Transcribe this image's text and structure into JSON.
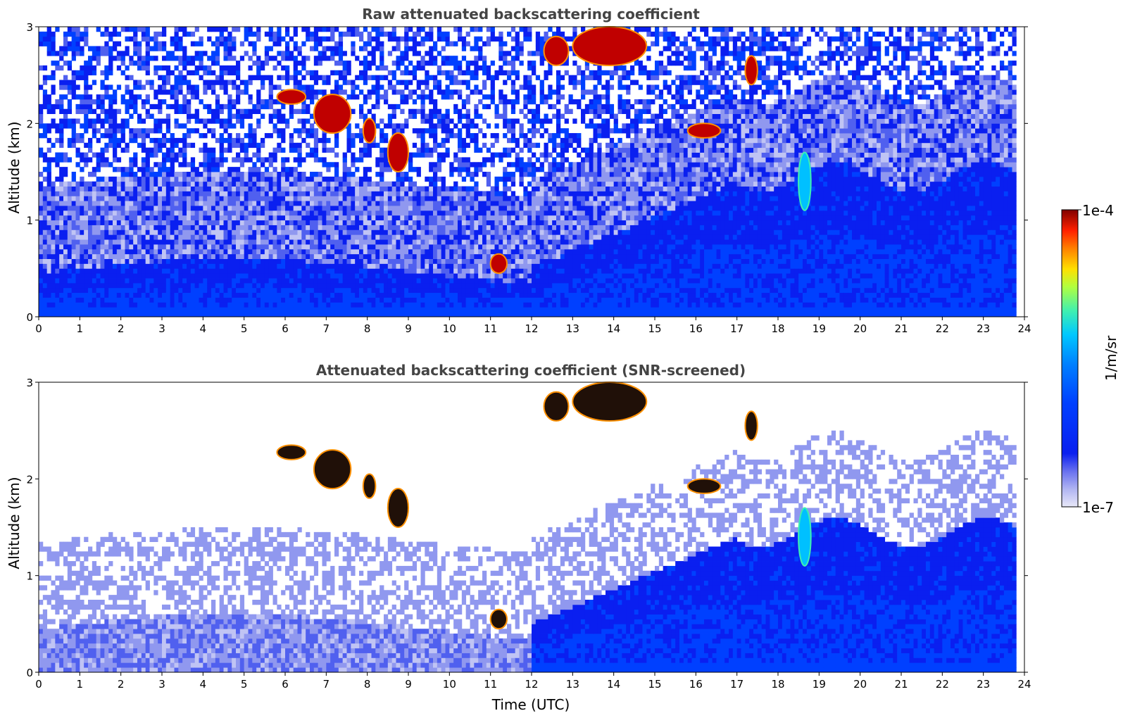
{
  "chart_data": [
    {
      "type": "heatmap",
      "title": "Raw attenuated backscattering coefficient",
      "xlabel": "",
      "ylabel": "Altitude (km)",
      "xlim": [
        0,
        24
      ],
      "ylim": [
        0,
        3
      ],
      "x_ticks": [
        "0",
        "1",
        "2",
        "3",
        "4",
        "5",
        "6",
        "7",
        "8",
        "9",
        "10",
        "11",
        "12",
        "13",
        "14",
        "15",
        "16",
        "17",
        "18",
        "19",
        "20",
        "21",
        "22",
        "23",
        "24"
      ],
      "y_ticks": [
        "0",
        "1",
        "2",
        "3"
      ],
      "features": [
        {
          "kind": "cloud",
          "x": [
            5.8,
            6.5
          ],
          "y": [
            2.2,
            2.35
          ],
          "level": "high"
        },
        {
          "kind": "cloud",
          "x": [
            6.7,
            7.6
          ],
          "y": [
            1.9,
            2.3
          ],
          "level": "high"
        },
        {
          "kind": "cloud",
          "x": [
            7.9,
            8.2
          ],
          "y": [
            1.8,
            2.05
          ],
          "level": "high"
        },
        {
          "kind": "cloud",
          "x": [
            8.5,
            9.0
          ],
          "y": [
            1.5,
            1.9
          ],
          "level": "high"
        },
        {
          "kind": "cloud",
          "x": [
            11.0,
            11.4
          ],
          "y": [
            0.45,
            0.65
          ],
          "level": "high"
        },
        {
          "kind": "cloud",
          "x": [
            12.3,
            12.9
          ],
          "y": [
            2.6,
            2.9
          ],
          "level": "high"
        },
        {
          "kind": "cloud",
          "x": [
            13.0,
            14.8
          ],
          "y": [
            2.6,
            3.0
          ],
          "level": "high"
        },
        {
          "kind": "cloud",
          "x": [
            15.8,
            16.6
          ],
          "y": [
            1.85,
            2.0
          ],
          "level": "high"
        },
        {
          "kind": "cloud",
          "x": [
            17.2,
            17.5
          ],
          "y": [
            2.4,
            2.7
          ],
          "level": "high"
        },
        {
          "kind": "cloud",
          "x": [
            18.5,
            18.8
          ],
          "y": [
            1.1,
            1.7
          ],
          "level": "mid"
        }
      ]
    },
    {
      "type": "heatmap",
      "title": "Attenuated backscattering coefficient (SNR-screened)",
      "xlabel": "Time (UTC)",
      "ylabel": "Altitude (km)",
      "xlim": [
        0,
        24
      ],
      "ylim": [
        0,
        3
      ],
      "x_ticks": [
        "0",
        "1",
        "2",
        "3",
        "4",
        "5",
        "6",
        "7",
        "8",
        "9",
        "10",
        "11",
        "12",
        "13",
        "14",
        "15",
        "16",
        "17",
        "18",
        "19",
        "20",
        "21",
        "22",
        "23",
        "24"
      ],
      "y_ticks": [
        "0",
        "1",
        "2",
        "3"
      ],
      "features": [
        {
          "kind": "cloud",
          "x": [
            5.8,
            6.5
          ],
          "y": [
            2.2,
            2.35
          ],
          "level": "high"
        },
        {
          "kind": "cloud",
          "x": [
            6.7,
            7.6
          ],
          "y": [
            1.9,
            2.3
          ],
          "level": "high"
        },
        {
          "kind": "cloud",
          "x": [
            7.9,
            8.2
          ],
          "y": [
            1.8,
            2.05
          ],
          "level": "high"
        },
        {
          "kind": "cloud",
          "x": [
            8.5,
            9.0
          ],
          "y": [
            1.5,
            1.9
          ],
          "level": "high"
        },
        {
          "kind": "cloud",
          "x": [
            11.0,
            11.4
          ],
          "y": [
            0.45,
            0.65
          ],
          "level": "high"
        },
        {
          "kind": "cloud",
          "x": [
            12.3,
            12.9
          ],
          "y": [
            2.6,
            2.9
          ],
          "level": "high"
        },
        {
          "kind": "cloud",
          "x": [
            13.0,
            14.8
          ],
          "y": [
            2.6,
            3.0
          ],
          "level": "high"
        },
        {
          "kind": "cloud",
          "x": [
            15.8,
            16.6
          ],
          "y": [
            1.85,
            2.0
          ],
          "level": "high"
        },
        {
          "kind": "cloud",
          "x": [
            17.2,
            17.5
          ],
          "y": [
            2.4,
            2.7
          ],
          "level": "high"
        },
        {
          "kind": "cloud",
          "x": [
            18.5,
            18.8
          ],
          "y": [
            1.1,
            1.7
          ],
          "level": "mid"
        }
      ]
    }
  ],
  "colorbar": {
    "label": "1/m/sr",
    "max_label": "1e-4",
    "min_label": "1e-7",
    "colors": [
      "#e8e8f8",
      "#c0c4f4",
      "#9098ef",
      "#5060ef",
      "#0a1ff0",
      "#0040ff",
      "#0080ff",
      "#00c8ff",
      "#20e8d0",
      "#80ff80",
      "#d8ff20",
      "#ffe000",
      "#ff9000",
      "#ff3000",
      "#d00000",
      "#800000"
    ]
  }
}
